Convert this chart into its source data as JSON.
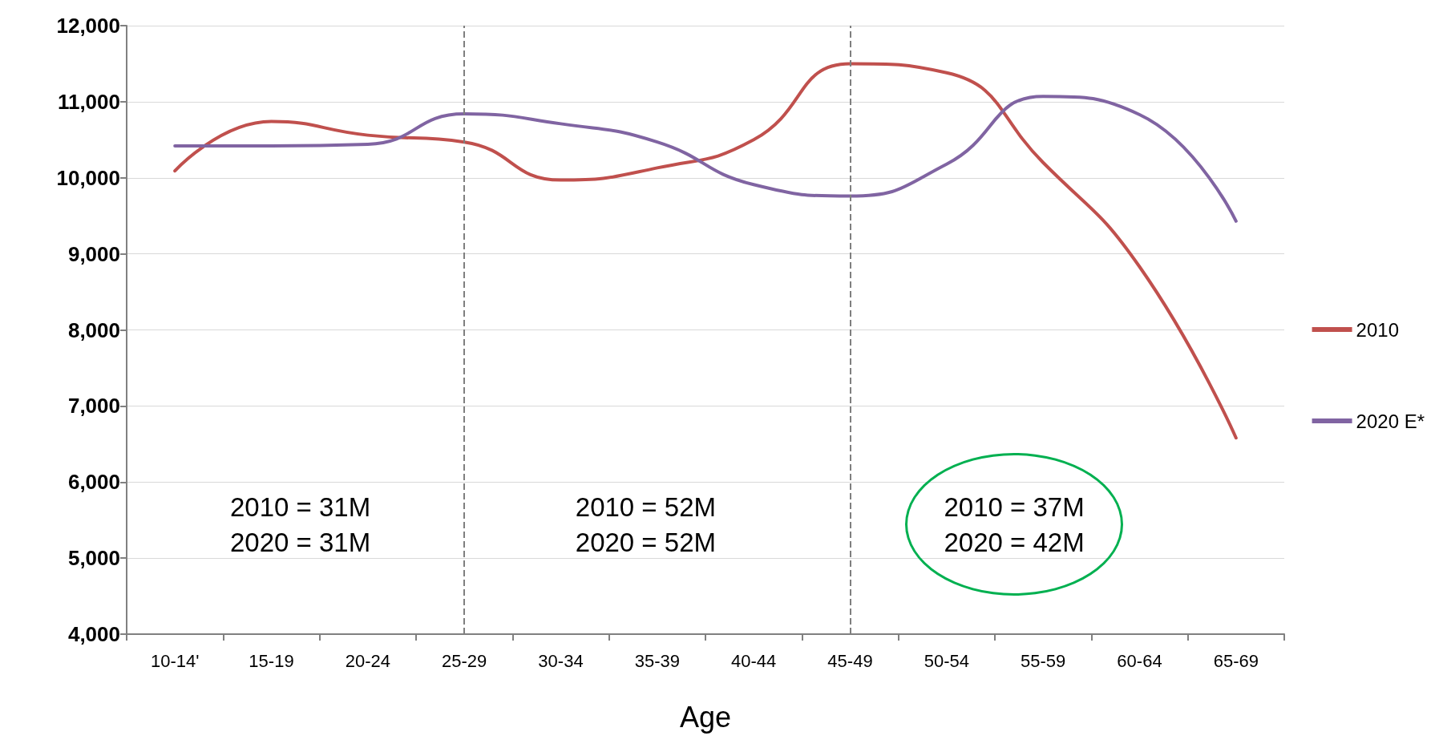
{
  "chart_data": {
    "type": "line",
    "xlabel": "Age",
    "categories": [
      "10-14'",
      "15-19",
      "20-24",
      "25-29",
      "30-34",
      "35-39",
      "40-44",
      "45-49",
      "50-54",
      "55-59",
      "60-64",
      "65-69"
    ],
    "series": [
      {
        "name": "2010",
        "color": "#c0504d",
        "values": [
          10090,
          10740,
          10560,
          10470,
          9970,
          10130,
          10500,
          11500,
          11380,
          10200,
          8830,
          6580
        ]
      },
      {
        "name": "2020 E*",
        "color": "#8064a2",
        "values": [
          10420,
          10420,
          10440,
          10840,
          10710,
          10470,
          9910,
          9760,
          10180,
          11070,
          10830,
          9430
        ]
      }
    ],
    "ylim": [
      4000,
      12000
    ],
    "yticks": [
      {
        "value": 4000,
        "label": "4,000"
      },
      {
        "value": 5000,
        "label": "5,000"
      },
      {
        "value": 6000,
        "label": "6,000"
      },
      {
        "value": 7000,
        "label": "7,000"
      },
      {
        "value": 8000,
        "label": "8,000"
      },
      {
        "value": 9000,
        "label": "9,000"
      },
      {
        "value": 10000,
        "label": "10,000"
      },
      {
        "value": 11000,
        "label": "11,000"
      },
      {
        "value": 12000,
        "label": "12,000"
      }
    ],
    "ref_lines": [
      {
        "axis": "x",
        "value": "25-29",
        "label": null,
        "color": "#7f7f7f",
        "line_style": "dashed"
      },
      {
        "axis": "x",
        "value": "45-49",
        "label": null,
        "color": "#7f7f7f",
        "line_style": "dashed"
      }
    ],
    "annotations": [
      "2010 = 31M\n2020 = 31M",
      "2010 = 52M\n2020 = 52M",
      "2010 = 37M\n2020 = 42M"
    ],
    "grid": "y",
    "legend": "right",
    "marker": "none",
    "line_style": "solid"
  }
}
